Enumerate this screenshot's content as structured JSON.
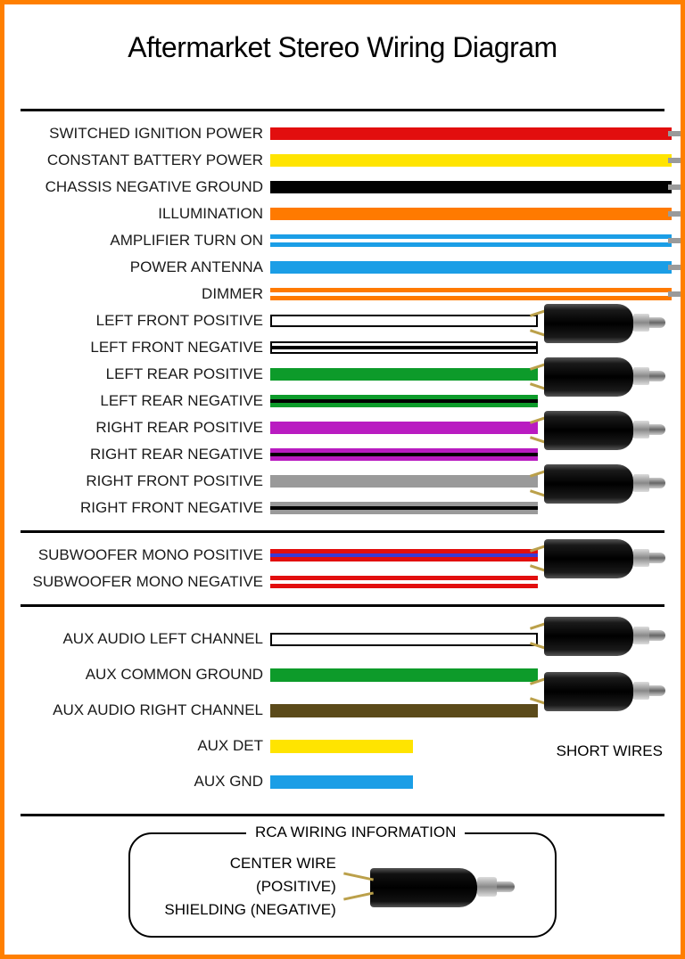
{
  "title": "Aftermarket Stereo Wiring Diagram",
  "divider_color": "#000000",
  "lead_color": "#9a9a9a",
  "connector_wire_color": "#bba04a",
  "section1_wires": [
    {
      "label": "SWITCHED IGNITION POWER",
      "fill": "#e20e0e",
      "border": "none",
      "stripe": null
    },
    {
      "label": "CONSTANT BATTERY POWER",
      "fill": "#ffe400",
      "border": "none",
      "stripe": null
    },
    {
      "label": "CHASSIS NEGATIVE GROUND",
      "fill": "#000000",
      "border": "none",
      "stripe": null
    },
    {
      "label": "ILLUMINATION",
      "fill": "#ff7a00",
      "border": "none",
      "stripe": null
    },
    {
      "label": "AMPLIFIER TURN ON",
      "fill": "#1b9ee6",
      "border": "none",
      "stripe": "#ffffff"
    },
    {
      "label": "POWER ANTENNA",
      "fill": "#1b9ee6",
      "border": "none",
      "stripe": null
    },
    {
      "label": "DIMMER",
      "fill": "#ff7a00",
      "border": "none",
      "stripe": "#ffffff"
    }
  ],
  "section1_pairs": [
    {
      "pos_label": "LEFT FRONT POSITIVE",
      "neg_label": "LEFT FRONT NEGATIVE",
      "pos_fill": "#ffffff",
      "pos_border": "#000000",
      "neg_fill": "#ffffff",
      "neg_border": "#000000",
      "neg_stripe": "#000000"
    },
    {
      "pos_label": "LEFT REAR POSITIVE",
      "neg_label": "LEFT REAR NEGATIVE",
      "pos_fill": "#0d9b2a",
      "pos_border": "none",
      "neg_fill": "#0d9b2a",
      "neg_border": "none",
      "neg_stripe": "#000000"
    },
    {
      "pos_label": "RIGHT REAR POSITIVE",
      "neg_label": "RIGHT REAR NEGATIVE",
      "pos_fill": "#b91bc1",
      "pos_border": "none",
      "neg_fill": "#b91bc1",
      "neg_border": "none",
      "neg_stripe": "#000000"
    },
    {
      "pos_label": "RIGHT FRONT POSITIVE",
      "neg_label": "RIGHT FRONT NEGATIVE",
      "pos_fill": "#9a9a9a",
      "pos_border": "none",
      "neg_fill": "#9a9a9a",
      "neg_border": "none",
      "neg_stripe": "#000000"
    }
  ],
  "section2_pair": {
    "pos_label": "SUBWOOFER MONO POSITIVE",
    "neg_label": "SUBWOOFER MONO NEGATIVE",
    "pos_fill": "#e20e0e",
    "pos_stripe": "#3a3ad6",
    "neg_fill": "#e20e0e",
    "neg_stripe": "#ffffff"
  },
  "section3_rows": [
    {
      "label": "AUX AUDIO LEFT CHANNEL",
      "fill": "#ffffff",
      "border": "#000000"
    },
    {
      "label": "AUX COMMON GROUND",
      "fill": "#0d9b2a",
      "border": "none"
    },
    {
      "label": "AUX AUDIO RIGHT CHANNEL",
      "fill": "#5b4a1a",
      "border": "none"
    },
    {
      "label": "AUX DET",
      "fill": "#ffe400",
      "border": "none"
    },
    {
      "label": "AUX GND",
      "fill": "#1b9ee6",
      "border": "none"
    }
  ],
  "short_wires_label": "SHORT WIRES",
  "rca_info": {
    "title": "RCA WIRING INFORMATION",
    "center_label": "CENTER WIRE (POSITIVE)",
    "shield_label": "SHIELDING (NEGATIVE)"
  }
}
